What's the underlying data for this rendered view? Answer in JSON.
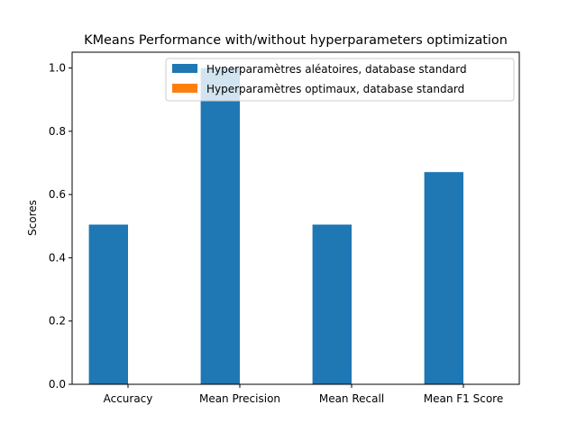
{
  "chart_data": {
    "type": "bar",
    "title": "KMeans Performance with/without hyperparameters optimization",
    "xlabel": "",
    "ylabel": "Scores",
    "categories": [
      "Accuracy",
      "Mean Precision",
      "Mean Recall",
      "Mean F1 Score"
    ],
    "series": [
      {
        "name": "Hyperparamètres aléatoires, database standard",
        "color": "#1f77b4",
        "values": [
          0.505,
          1.0,
          0.505,
          0.671
        ]
      },
      {
        "name": "Hyperparamètres optimaux, database standard",
        "color": "#ff7f0e",
        "values": [
          0.0,
          0.0,
          0.0,
          0.0
        ]
      }
    ],
    "ylim": [
      0,
      1.05
    ],
    "yticks": [
      0.0,
      0.2,
      0.4,
      0.6,
      0.8,
      1.0
    ],
    "ytick_labels": [
      "0.0",
      "0.2",
      "0.4",
      "0.6",
      "0.8",
      "1.0"
    ],
    "grid": false,
    "legend_position": "top-right"
  }
}
